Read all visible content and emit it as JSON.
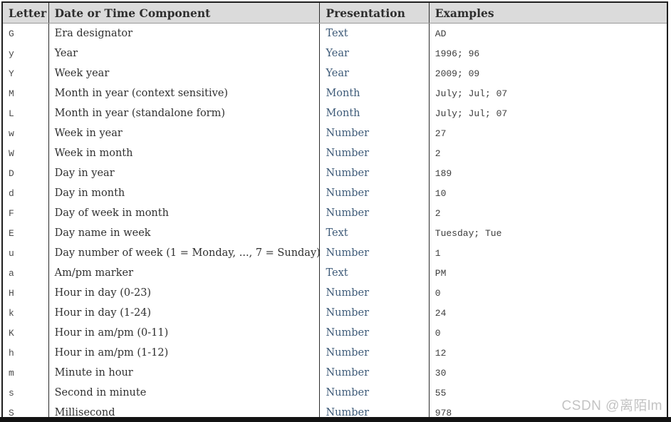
{
  "colors": {
    "header_bg": "#dbdbdb",
    "outer_border": "#1e1e1e",
    "column_divider": "#2b2b2b",
    "header_divider": "#9a9a9a",
    "presentation_text": "#3d5a78",
    "component_text": "#303030",
    "mono_text": "#3d3d3d",
    "watermark_text": "#c3c3c3",
    "bottom_bar": "#131313"
  },
  "table": {
    "columns": [
      {
        "key": "letter",
        "label": "Letter"
      },
      {
        "key": "component",
        "label": "Date or Time Component"
      },
      {
        "key": "presentation",
        "label": "Presentation"
      },
      {
        "key": "examples",
        "label": "Examples"
      }
    ],
    "rows": [
      {
        "letter": "G",
        "component": "Era designator",
        "presentation": "Text",
        "examples": "AD"
      },
      {
        "letter": "y",
        "component": "Year",
        "presentation": "Year",
        "examples": "1996; 96"
      },
      {
        "letter": "Y",
        "component": "Week year",
        "presentation": "Year",
        "examples": "2009; 09"
      },
      {
        "letter": "M",
        "component": "Month in year (context sensitive)",
        "presentation": "Month",
        "examples": "July; Jul; 07"
      },
      {
        "letter": "L",
        "component": "Month in year (standalone form)",
        "presentation": "Month",
        "examples": "July; Jul; 07"
      },
      {
        "letter": "w",
        "component": "Week in year",
        "presentation": "Number",
        "examples": "27"
      },
      {
        "letter": "W",
        "component": "Week in month",
        "presentation": "Number",
        "examples": "2"
      },
      {
        "letter": "D",
        "component": "Day in year",
        "presentation": "Number",
        "examples": "189"
      },
      {
        "letter": "d",
        "component": "Day in month",
        "presentation": "Number",
        "examples": "10"
      },
      {
        "letter": "F",
        "component": "Day of week in month",
        "presentation": "Number",
        "examples": "2"
      },
      {
        "letter": "E",
        "component": "Day name in week",
        "presentation": "Text",
        "examples": "Tuesday; Tue"
      },
      {
        "letter": "u",
        "component": "Day number of week (1 = Monday, ..., 7 = Sunday)",
        "presentation": "Number",
        "examples": "1"
      },
      {
        "letter": "a",
        "component": "Am/pm marker",
        "presentation": "Text",
        "examples": "PM"
      },
      {
        "letter": "H",
        "component": "Hour in day (0-23)",
        "presentation": "Number",
        "examples": "0"
      },
      {
        "letter": "k",
        "component": "Hour in day (1-24)",
        "presentation": "Number",
        "examples": "24"
      },
      {
        "letter": "K",
        "component": "Hour in am/pm (0-11)",
        "presentation": "Number",
        "examples": "0"
      },
      {
        "letter": "h",
        "component": "Hour in am/pm (1-12)",
        "presentation": "Number",
        "examples": "12"
      },
      {
        "letter": "m",
        "component": "Minute in hour",
        "presentation": "Number",
        "examples": "30"
      },
      {
        "letter": "s",
        "component": "Second in minute",
        "presentation": "Number",
        "examples": "55"
      },
      {
        "letter": "S",
        "component": "Millisecond",
        "presentation": "Number",
        "examples": "978"
      }
    ]
  },
  "watermark": {
    "text": "CSDN @离陌lm"
  }
}
